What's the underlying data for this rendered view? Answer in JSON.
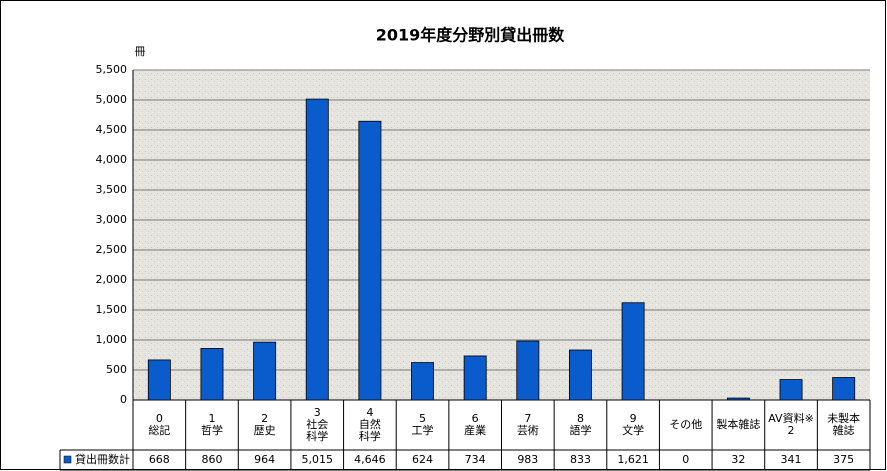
{
  "chart_data": {
    "type": "bar",
    "title": "2019年度分野別貸出冊数",
    "y_label": "冊",
    "categories": [
      "0\n総記",
      "1\n哲学",
      "2\n歴史",
      "3\n社会\n科学",
      "4\n自然\n科学",
      "5\n工学",
      "6\n産業",
      "7\n芸術",
      "8\n語学",
      "9\n文学",
      "その他",
      "製本雑誌",
      "AV資料※\n2",
      "未製本\n雑誌"
    ],
    "series": [
      {
        "name": "貸出冊数計",
        "color": "#0a5ccc",
        "values": [
          668,
          860,
          964,
          5015,
          4646,
          624,
          734,
          983,
          833,
          1621,
          0,
          32,
          341,
          375
        ],
        "value_labels": [
          "668",
          "860",
          "964",
          "5,015",
          "4,646",
          "624",
          "734",
          "983",
          "833",
          "1,621",
          "0",
          "32",
          "341",
          "375"
        ]
      }
    ],
    "ylim": [
      0,
      5500
    ],
    "yticks": [
      0,
      500,
      {
        "value": 1000,
        "label": "1,000"
      },
      {
        "value": 1500,
        "label": "1,500"
      },
      {
        "value": 2000,
        "label": "2,000"
      },
      {
        "value": 2500,
        "label": "2,500"
      },
      {
        "value": 3000,
        "label": "3,000"
      },
      {
        "value": 3500,
        "label": "3,500"
      },
      {
        "value": 4000,
        "label": "4,000"
      },
      {
        "value": 4500,
        "label": "4,500"
      },
      {
        "value": 5000,
        "label": "5,000"
      },
      {
        "value": 5500,
        "label": "5,500"
      }
    ],
    "grid": true
  }
}
